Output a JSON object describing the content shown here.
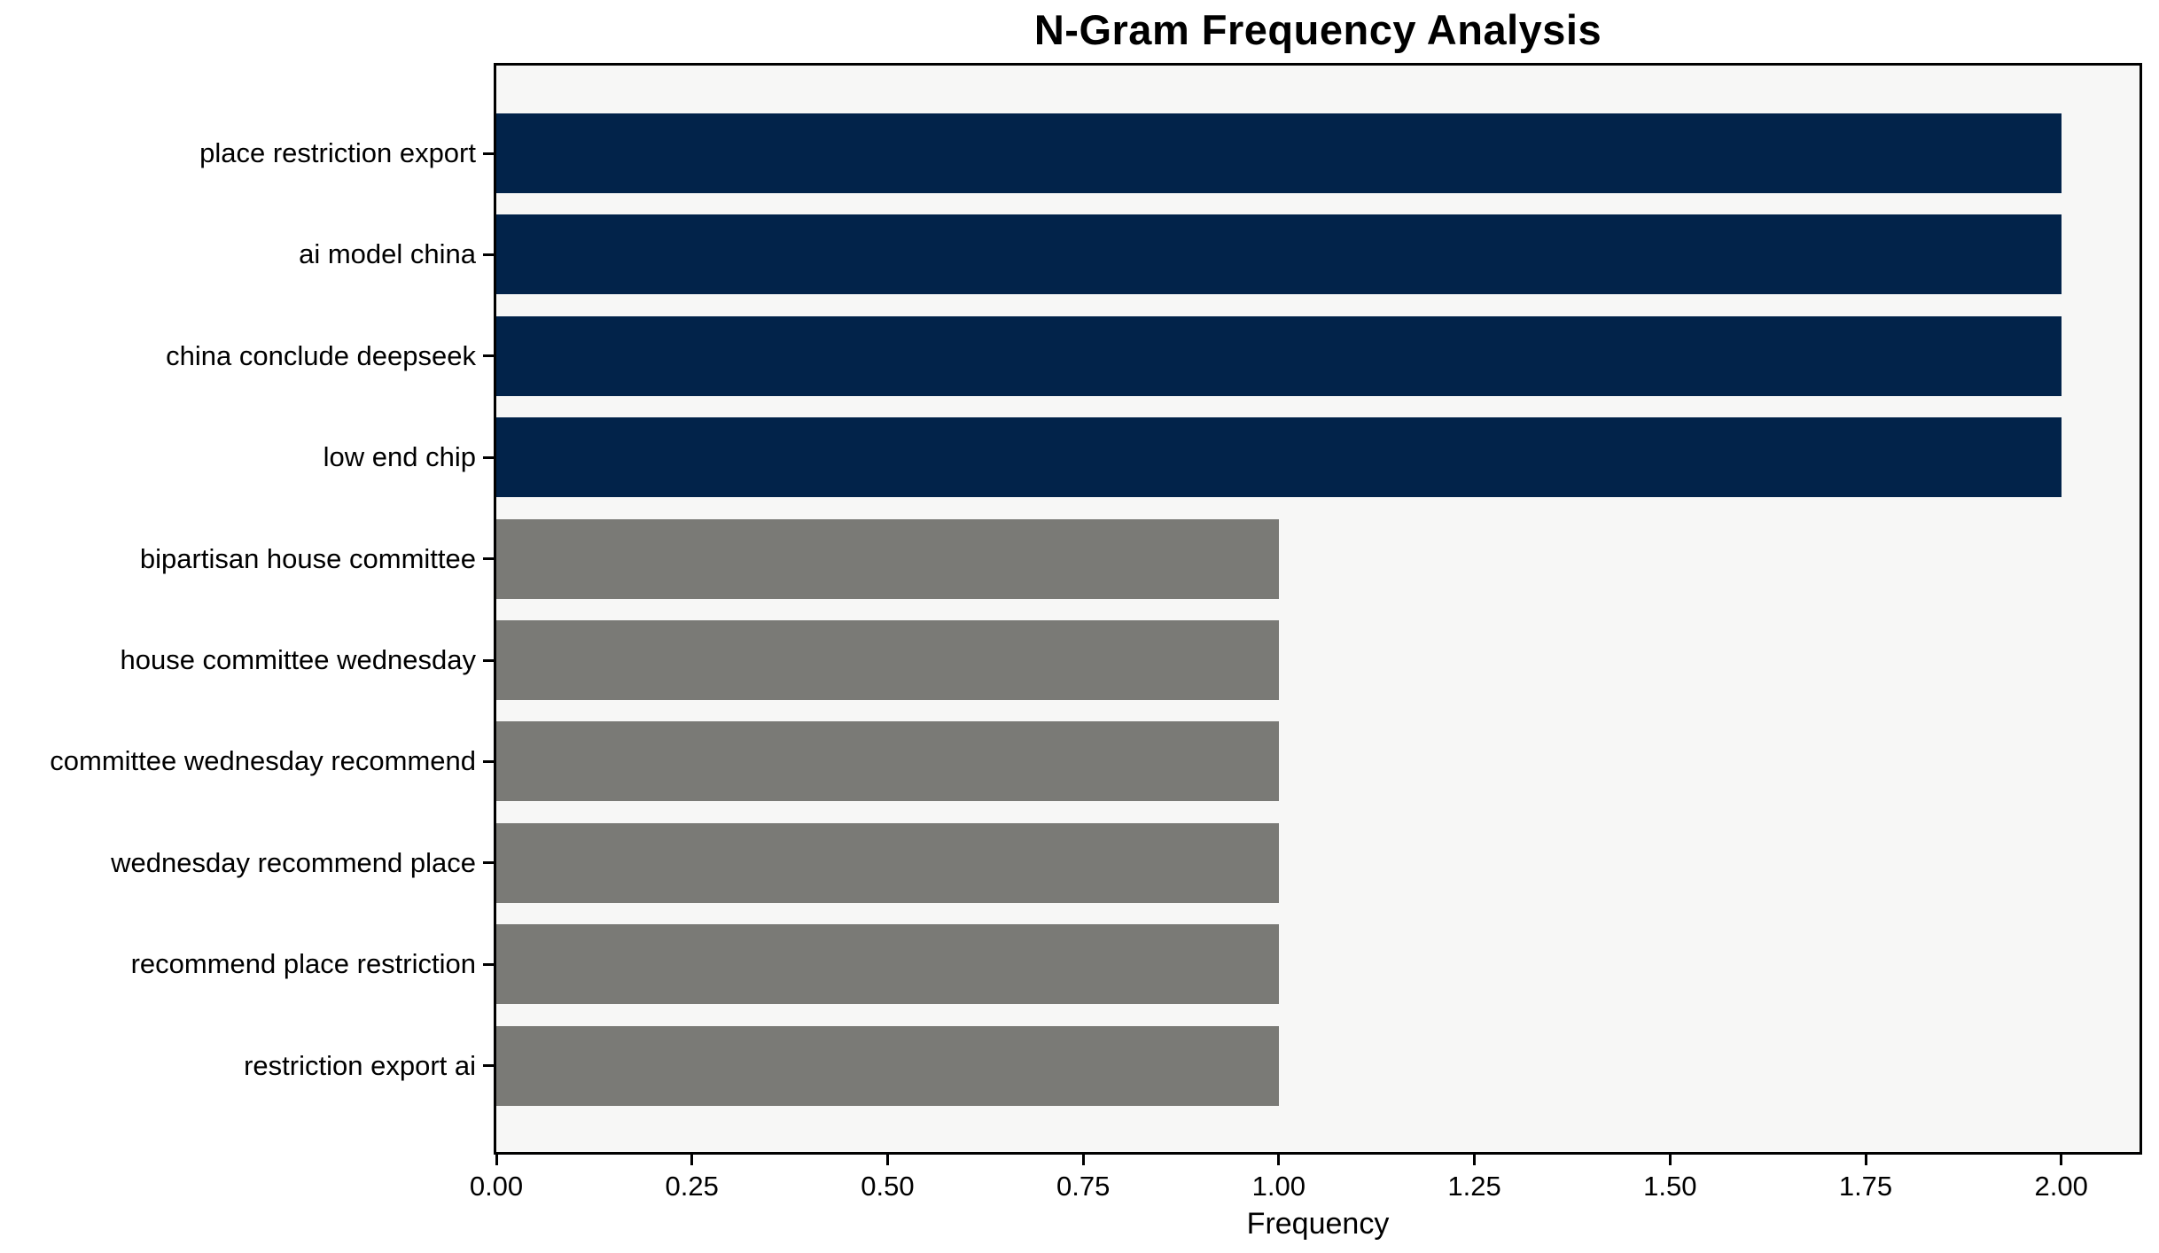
{
  "chart_data": {
    "type": "bar",
    "orientation": "horizontal",
    "title": "N-Gram Frequency Analysis",
    "xlabel": "Frequency",
    "ylabel": "",
    "categories": [
      "place restriction export",
      "ai model china",
      "china conclude deepseek",
      "low end chip",
      "bipartisan house committee",
      "house committee wednesday",
      "committee wednesday recommend",
      "wednesday recommend place",
      "recommend place restriction",
      "restriction export ai"
    ],
    "values": [
      2,
      2,
      2,
      2,
      1,
      1,
      1,
      1,
      1,
      1
    ],
    "bar_colors": [
      "#02234a",
      "#02234a",
      "#02234a",
      "#02234a",
      "#7a7a76",
      "#7a7a76",
      "#7a7a76",
      "#7a7a76",
      "#7a7a76",
      "#7a7a76"
    ],
    "xlim": [
      0,
      2.1
    ],
    "xticks": [
      0,
      0.25,
      0.5,
      0.75,
      1.0,
      1.25,
      1.5,
      1.75,
      2.0
    ],
    "xtick_labels": [
      "0.00",
      "0.25",
      "0.50",
      "0.75",
      "1.00",
      "1.25",
      "1.50",
      "1.75",
      "2.00"
    ],
    "grid": false,
    "legend": "none",
    "colors": {
      "high_frequency_bar": "#02234a",
      "low_frequency_bar": "#7a7a76",
      "plot_background": "#f7f7f6",
      "figure_background": "#ffffff",
      "spine": "#000000",
      "text": "#000000"
    }
  }
}
